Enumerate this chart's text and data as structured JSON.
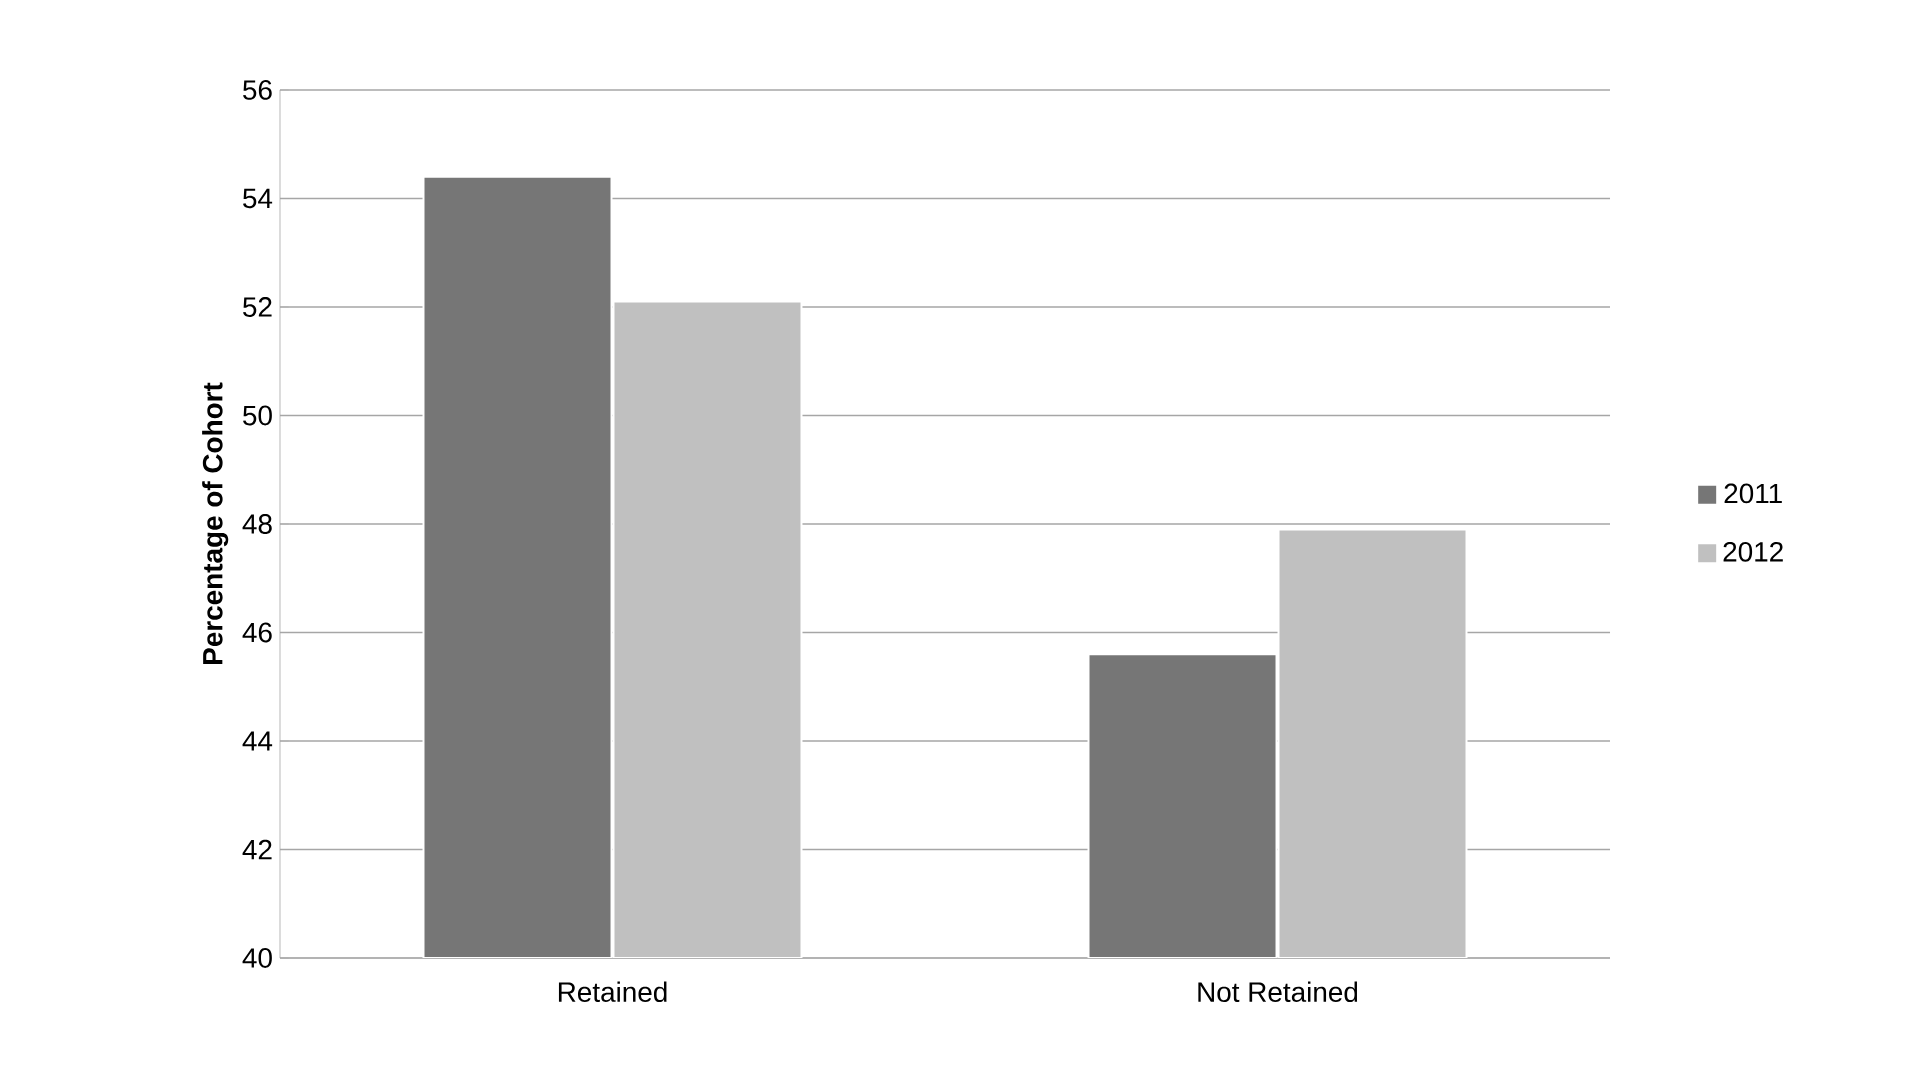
{
  "chart_data": {
    "type": "bar",
    "ylabel": "**Percentage of Cohort**",
    "categories": [
      "Retained",
      "Not Retained"
    ],
    "series": [
      {
        "name": "2011",
        "color": "#767676",
        "values": [
          54.4,
          45.6
        ]
      },
      {
        "name": "2012",
        "color": "#c0c0c0",
        "values": [
          52.1,
          47.9
        ]
      }
    ],
    "ylim": [
      40,
      56
    ],
    "yticks": [
      40,
      42,
      44,
      46,
      48,
      50,
      52,
      54,
      56
    ],
    "grid": "y",
    "legend": "right"
  }
}
